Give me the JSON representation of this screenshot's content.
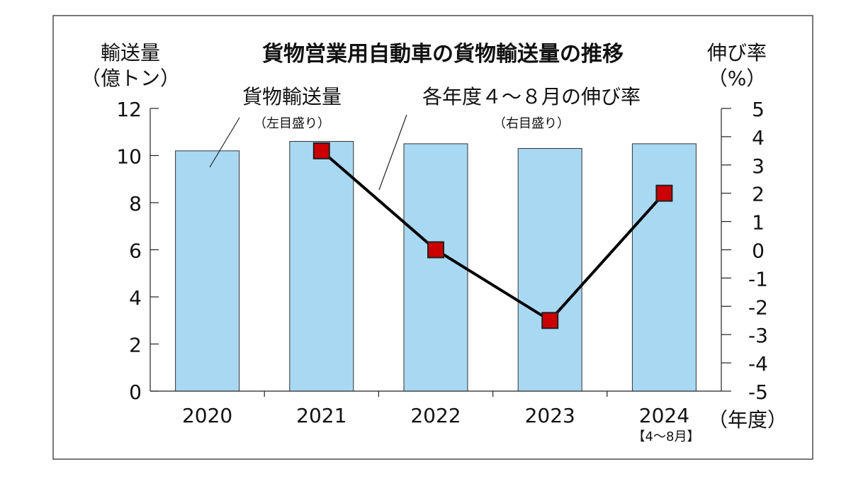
{
  "chart_data": {
    "type": "bar+line",
    "title": "貨物営業用自動車の貨物輸送量の推移",
    "left_axis": {
      "unit_line1": "輸送量",
      "unit_line2": "（億トン）",
      "ylim": [
        0,
        12
      ],
      "ticks": [
        0,
        2,
        4,
        6,
        8,
        10,
        12
      ]
    },
    "right_axis": {
      "unit_line1": "伸び率",
      "unit_line2": "（%）",
      "ylim": [
        -5,
        5
      ],
      "ticks": [
        "5",
        "4",
        "3",
        "2",
        "1",
        "0",
        "-1",
        "-2",
        "-3",
        "-4",
        "-5"
      ]
    },
    "categories": [
      "2020",
      "2021",
      "2022",
      "2023",
      "2024"
    ],
    "category_note": "【4〜8月】",
    "x_unit": "（年度）",
    "bar_series": {
      "label": "貨物輸送量",
      "sublabel": "（左目盛り）",
      "values": [
        10.2,
        10.6,
        10.5,
        10.3,
        10.5
      ]
    },
    "line_series": {
      "label": "各年度４〜８月の伸び率",
      "sublabel": "（右目盛り）",
      "values": [
        null,
        3.5,
        0,
        -2.5,
        2
      ]
    }
  },
  "colors": {
    "bar": "#a9d8f3",
    "marker": "#cc0000",
    "line": "#000000"
  }
}
